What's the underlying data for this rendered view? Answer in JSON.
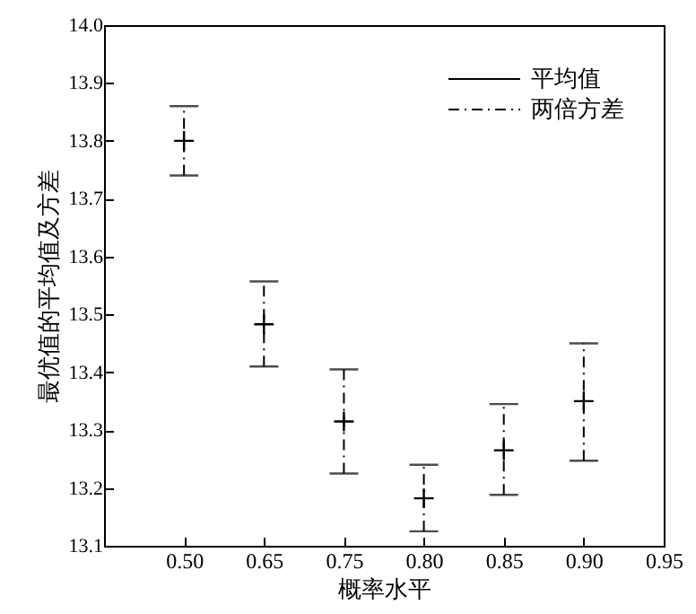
{
  "chart_data": {
    "type": "scatter",
    "xlabel": "概率水平",
    "ylabel": "最优值的平均值及方差",
    "categories": [
      null,
      "0.50",
      "0.65",
      "0.75",
      "0.80",
      "0.85",
      "0.90",
      "0.95"
    ],
    "series": [
      {
        "name": "平均值",
        "color": "#000000",
        "values": [
          null,
          13.8,
          13.483,
          13.315,
          13.182,
          13.265,
          13.35,
          null
        ],
        "errors": [
          null,
          [
            13.74,
            13.86
          ],
          [
            13.41,
            13.557
          ],
          [
            13.225,
            13.405
          ],
          [
            13.125,
            13.24
          ],
          [
            13.188,
            13.345
          ],
          [
            13.247,
            13.45
          ],
          null
        ]
      }
    ],
    "annotations": [
      "两倍方差"
    ],
    "ylim": [
      13.1,
      14.0
    ],
    "yticks": [
      13.1,
      13.2,
      13.3,
      13.4,
      13.5,
      13.6,
      13.7,
      13.8,
      13.9,
      {
        "value": 14,
        "label": "14.0"
      }
    ],
    "marker": "cross",
    "legend": "top right",
    "grid": false
  }
}
